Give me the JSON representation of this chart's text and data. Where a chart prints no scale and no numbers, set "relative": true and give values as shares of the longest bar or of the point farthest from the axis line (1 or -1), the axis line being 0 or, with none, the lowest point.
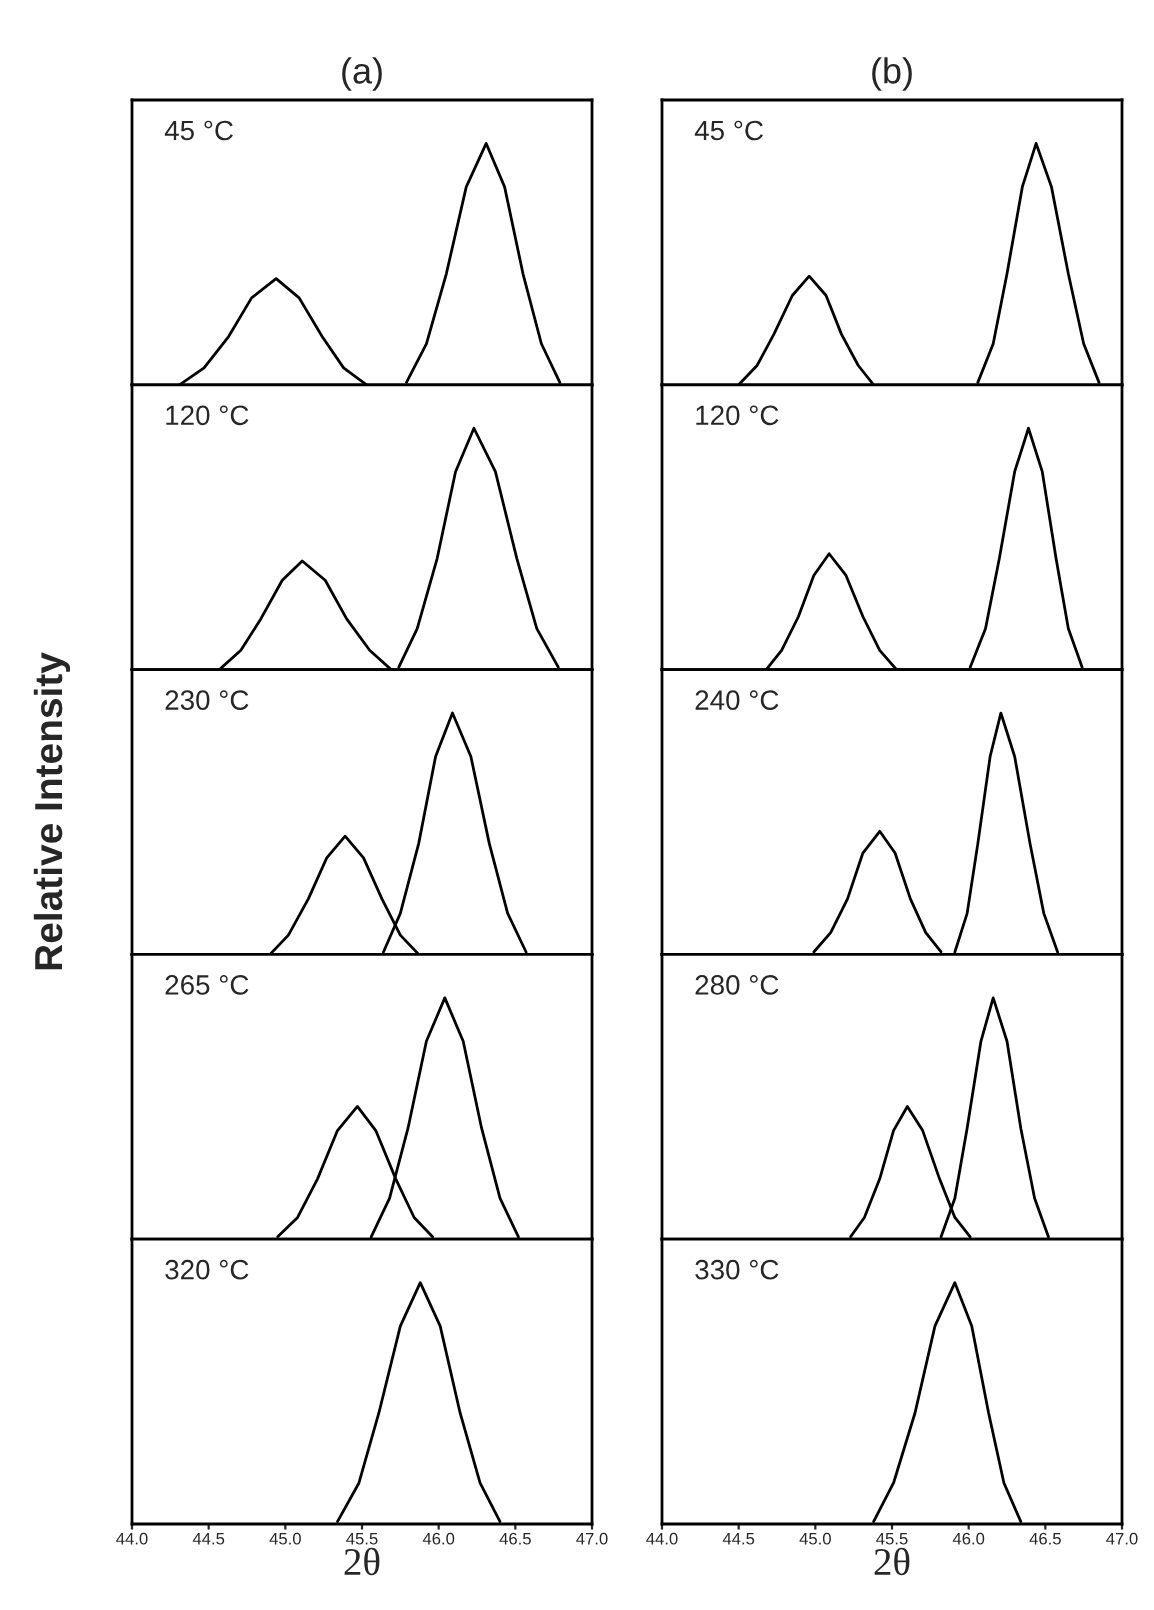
{
  "chart_data": [
    {
      "type": "line",
      "title": "(a)",
      "relative": true,
      "tick_labels": false,
      "xlim": [
        44.0,
        47.0
      ],
      "annotations": [
        "45 °C"
      ],
      "grid": false,
      "legend": false,
      "series": [
        {
          "color": "#000000",
          "x": [
            44.31,
            44.47,
            44.63,
            44.78,
            44.94,
            45.09,
            45.24,
            45.38,
            45.53
          ],
          "values": [
            0.0,
            0.07,
            0.2,
            0.36,
            0.44,
            0.36,
            0.2,
            0.07,
            0.0
          ]
        },
        {
          "color": "#000000",
          "x": [
            45.79,
            45.92,
            46.05,
            46.18,
            46.31,
            46.43,
            46.55,
            46.67,
            46.79
          ],
          "values": [
            0.01,
            0.17,
            0.46,
            0.82,
            1,
            0.82,
            0.46,
            0.17,
            0.01
          ]
        }
      ]
    },
    {
      "type": "line",
      "title": "(b)",
      "relative": true,
      "tick_labels": false,
      "xlim": [
        44.0,
        47.0
      ],
      "annotations": [
        "45 °C"
      ],
      "grid": false,
      "legend": false,
      "series": [
        {
          "color": "#000000",
          "x": [
            44.5,
            44.62,
            44.73,
            44.85,
            44.96,
            45.07,
            45.17,
            45.28,
            45.38
          ],
          "values": [
            0.0,
            0.08,
            0.21,
            0.37,
            0.45,
            0.37,
            0.21,
            0.08,
            0.0
          ]
        },
        {
          "color": "#000000",
          "x": [
            46.06,
            46.16,
            46.25,
            46.35,
            46.44,
            46.54,
            46.65,
            46.75,
            46.85
          ],
          "values": [
            0.01,
            0.17,
            0.46,
            0.82,
            1,
            0.82,
            0.46,
            0.17,
            0.01
          ]
        }
      ]
    },
    {
      "type": "line",
      "relative": true,
      "tick_labels": false,
      "xlim": [
        44.0,
        47.0
      ],
      "annotations": [
        "120 °C"
      ],
      "grid": false,
      "legend": false,
      "series": [
        {
          "color": "#000000",
          "x": [
            44.57,
            44.71,
            44.84,
            44.98,
            45.11,
            45.26,
            45.4,
            45.55,
            45.69
          ],
          "values": [
            0.0,
            0.08,
            0.21,
            0.37,
            0.45,
            0.37,
            0.21,
            0.08,
            0.0
          ]
        },
        {
          "color": "#000000",
          "x": [
            45.74,
            45.86,
            45.99,
            46.11,
            46.23,
            46.37,
            46.51,
            46.64,
            46.78
          ],
          "values": [
            0.01,
            0.17,
            0.46,
            0.82,
            1,
            0.82,
            0.46,
            0.17,
            0.01
          ]
        }
      ]
    },
    {
      "type": "line",
      "relative": true,
      "tick_labels": false,
      "xlim": [
        44.0,
        47.0
      ],
      "annotations": [
        "120 °C"
      ],
      "grid": false,
      "legend": false,
      "series": [
        {
          "color": "#000000",
          "x": [
            44.68,
            44.78,
            44.89,
            44.99,
            45.09,
            45.2,
            45.31,
            45.42,
            45.53
          ],
          "values": [
            0.0,
            0.08,
            0.22,
            0.39,
            0.48,
            0.39,
            0.22,
            0.08,
            0.0
          ]
        },
        {
          "color": "#000000",
          "x": [
            46.01,
            46.11,
            46.2,
            46.3,
            46.39,
            46.48,
            46.57,
            46.65,
            46.74
          ],
          "values": [
            0.01,
            0.17,
            0.46,
            0.82,
            1,
            0.82,
            0.46,
            0.17,
            0.01
          ]
        }
      ]
    },
    {
      "type": "line",
      "ylabel": "Relative Intensity",
      "relative": true,
      "tick_labels": false,
      "xlim": [
        44.0,
        47.0
      ],
      "annotations": [
        "230 °C"
      ],
      "grid": false,
      "legend": false,
      "series": [
        {
          "color": "#000000",
          "x": [
            44.9,
            45.02,
            45.15,
            45.27,
            45.39,
            45.51,
            45.63,
            45.75,
            45.87
          ],
          "values": [
            0.0,
            0.08,
            0.23,
            0.4,
            0.49,
            0.4,
            0.23,
            0.08,
            0.0
          ]
        },
        {
          "color": "#000000",
          "x": [
            45.64,
            45.75,
            45.87,
            45.98,
            46.09,
            46.21,
            46.33,
            46.45,
            46.57
          ],
          "values": [
            0.01,
            0.17,
            0.46,
            0.82,
            1,
            0.82,
            0.46,
            0.17,
            0.01
          ]
        }
      ]
    },
    {
      "type": "line",
      "relative": true,
      "tick_labels": false,
      "xlim": [
        44.0,
        47.0
      ],
      "annotations": [
        "240 °C"
      ],
      "grid": false,
      "legend": false,
      "series": [
        {
          "color": "#000000",
          "x": [
            44.99,
            45.1,
            45.21,
            45.31,
            45.42,
            45.52,
            45.62,
            45.72,
            45.82
          ],
          "values": [
            0.01,
            0.09,
            0.23,
            0.42,
            0.51,
            0.42,
            0.23,
            0.09,
            0.01
          ]
        },
        {
          "color": "#000000",
          "x": [
            45.91,
            45.99,
            46.06,
            46.14,
            46.21,
            46.3,
            46.4,
            46.49,
            46.58
          ],
          "values": [
            0.01,
            0.17,
            0.46,
            0.82,
            1,
            0.82,
            0.46,
            0.17,
            0.01
          ]
        }
      ]
    },
    {
      "type": "line",
      "relative": true,
      "tick_labels": false,
      "xlim": [
        44.0,
        47.0
      ],
      "annotations": [
        "265 °C"
      ],
      "grid": false,
      "legend": false,
      "series": [
        {
          "color": "#000000",
          "x": [
            44.95,
            45.08,
            45.21,
            45.34,
            45.47,
            45.59,
            45.72,
            45.84,
            45.96
          ],
          "values": [
            0.01,
            0.09,
            0.25,
            0.45,
            0.55,
            0.45,
            0.25,
            0.09,
            0.01
          ]
        },
        {
          "color": "#000000",
          "x": [
            45.56,
            45.68,
            45.8,
            45.92,
            46.04,
            46.16,
            46.28,
            46.4,
            46.52
          ],
          "values": [
            0.01,
            0.17,
            0.46,
            0.82,
            1,
            0.82,
            0.46,
            0.17,
            0.01
          ]
        }
      ]
    },
    {
      "type": "line",
      "relative": true,
      "tick_labels": false,
      "xlim": [
        44.0,
        47.0
      ],
      "annotations": [
        "280 °C"
      ],
      "grid": false,
      "legend": false,
      "series": [
        {
          "color": "#000000",
          "x": [
            45.23,
            45.32,
            45.42,
            45.51,
            45.6,
            45.7,
            45.81,
            45.91,
            46.01
          ],
          "values": [
            0.01,
            0.09,
            0.25,
            0.45,
            0.55,
            0.45,
            0.25,
            0.09,
            0.01
          ]
        },
        {
          "color": "#000000",
          "x": [
            45.82,
            45.91,
            45.99,
            46.08,
            46.16,
            46.25,
            46.34,
            46.43,
            46.52
          ],
          "values": [
            0.01,
            0.17,
            0.46,
            0.82,
            1,
            0.82,
            0.46,
            0.17,
            0.01
          ]
        }
      ]
    },
    {
      "type": "line",
      "xlabel": "2θ",
      "relative": true,
      "tick_labels": "x",
      "xlim": [
        44.0,
        47.0
      ],
      "xticks": [
        {
          "value": 44.0,
          "label": "44.0"
        },
        {
          "value": 44.5,
          "label": "44.5"
        },
        {
          "value": 45.0,
          "label": "45.0"
        },
        {
          "value": 45.5,
          "label": "45.5"
        },
        {
          "value": 46.0,
          "label": "46.0"
        },
        {
          "value": 46.5,
          "label": "46.5"
        },
        {
          "value": 47.0,
          "label": "47.0"
        }
      ],
      "annotations": [
        "320 °C"
      ],
      "grid": false,
      "legend": false,
      "series": [
        {
          "color": "#000000",
          "x": [
            45.34,
            45.48,
            45.61,
            45.75,
            45.88,
            46.01,
            46.14,
            46.27,
            46.4
          ],
          "values": [
            0.01,
            0.17,
            0.46,
            0.82,
            1,
            0.82,
            0.46,
            0.17,
            0.01
          ]
        }
      ]
    },
    {
      "type": "line",
      "xlabel": "2θ",
      "relative": true,
      "tick_labels": "x",
      "xlim": [
        44.0,
        47.0
      ],
      "xticks": [
        {
          "value": 44.0,
          "label": "44.0"
        },
        {
          "value": 44.5,
          "label": "44.5"
        },
        {
          "value": 45.0,
          "label": "45.0"
        },
        {
          "value": 45.5,
          "label": "45.5"
        },
        {
          "value": 46.0,
          "label": "46.0"
        },
        {
          "value": 46.5,
          "label": "46.5"
        },
        {
          "value": 47.0,
          "label": "47.0"
        }
      ],
      "annotations": [
        "330 °C"
      ],
      "grid": false,
      "legend": false,
      "series": [
        {
          "color": "#000000",
          "x": [
            45.38,
            45.51,
            45.65,
            45.78,
            45.91,
            46.02,
            46.13,
            46.23,
            46.34
          ],
          "values": [
            0.01,
            0.17,
            0.46,
            0.82,
            1,
            0.82,
            0.46,
            0.17,
            0.01
          ]
        }
      ]
    }
  ]
}
